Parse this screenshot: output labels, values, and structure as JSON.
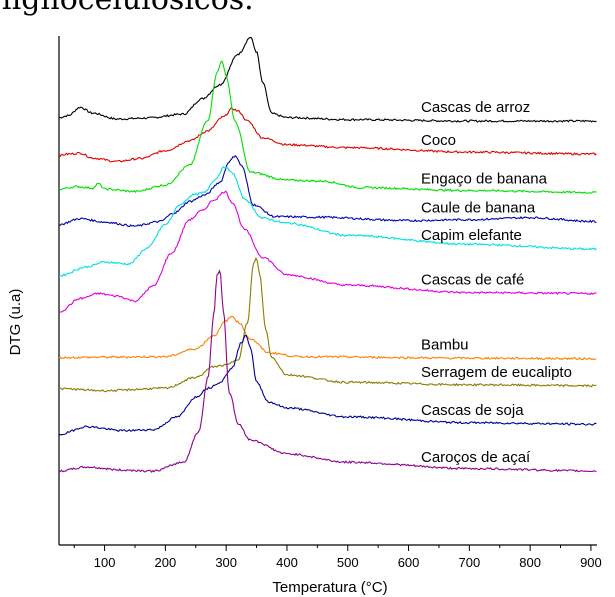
{
  "header_fragment": "lignocelulósicos.",
  "chart_data": {
    "type": "line",
    "title": "",
    "xlabel": "Temperatura (°C)",
    "ylabel": "DTG (u.a)",
    "xlim": [
      25,
      910
    ],
    "xticks": [
      100,
      200,
      300,
      400,
      500,
      600,
      700,
      800,
      900
    ],
    "ylim": [
      0,
      1
    ],
    "grid": false,
    "legend": "labels at right end of each curve",
    "series": [
      {
        "name": "Cascas de arroz",
        "color": "#000000",
        "points": [
          [
            25,
            0.867
          ],
          [
            40,
            0.871
          ],
          [
            60,
            0.888
          ],
          [
            80,
            0.876
          ],
          [
            120,
            0.864
          ],
          [
            170,
            0.866
          ],
          [
            230,
            0.874
          ],
          [
            260,
            0.905
          ],
          [
            290,
            0.934
          ],
          [
            320,
            0.996
          ],
          [
            340,
            1.03
          ],
          [
            350,
            1.0
          ],
          [
            360,
            0.938
          ],
          [
            375,
            0.875
          ],
          [
            400,
            0.867
          ],
          [
            500,
            0.863
          ],
          [
            700,
            0.86
          ],
          [
            910,
            0.86
          ]
        ]
      },
      {
        "name": "Coco",
        "color": "#e00000",
        "points": [
          [
            25,
            0.79
          ],
          [
            40,
            0.793
          ],
          [
            60,
            0.795
          ],
          [
            80,
            0.785
          ],
          [
            120,
            0.778
          ],
          [
            160,
            0.784
          ],
          [
            200,
            0.8
          ],
          [
            240,
            0.82
          ],
          [
            270,
            0.84
          ],
          [
            295,
            0.868
          ],
          [
            310,
            0.885
          ],
          [
            320,
            0.88
          ],
          [
            335,
            0.86
          ],
          [
            360,
            0.826
          ],
          [
            400,
            0.812
          ],
          [
            500,
            0.806
          ],
          [
            700,
            0.797
          ],
          [
            910,
            0.793
          ]
        ]
      },
      {
        "name": "Engaço de banana",
        "color": "#00e000",
        "points": [
          [
            25,
            0.722
          ],
          [
            55,
            0.727
          ],
          [
            80,
            0.724
          ],
          [
            90,
            0.733
          ],
          [
            100,
            0.722
          ],
          [
            150,
            0.717
          ],
          [
            200,
            0.73
          ],
          [
            240,
            0.77
          ],
          [
            270,
            0.862
          ],
          [
            285,
            0.958
          ],
          [
            293,
            0.983
          ],
          [
            300,
            0.95
          ],
          [
            315,
            0.858
          ],
          [
            340,
            0.756
          ],
          [
            400,
            0.74
          ],
          [
            460,
            0.738
          ],
          [
            520,
            0.725
          ],
          [
            700,
            0.719
          ],
          [
            910,
            0.715
          ]
        ]
      },
      {
        "name": "Caule de banana",
        "color": "#0000b0",
        "points": [
          [
            25,
            0.65
          ],
          [
            60,
            0.662
          ],
          [
            100,
            0.655
          ],
          [
            150,
            0.647
          ],
          [
            190,
            0.656
          ],
          [
            215,
            0.674
          ],
          [
            240,
            0.697
          ],
          [
            265,
            0.71
          ],
          [
            290,
            0.736
          ],
          [
            305,
            0.778
          ],
          [
            315,
            0.79
          ],
          [
            325,
            0.77
          ],
          [
            345,
            0.69
          ],
          [
            380,
            0.666
          ],
          [
            450,
            0.665
          ],
          [
            600,
            0.658
          ],
          [
            700,
            0.66
          ],
          [
            800,
            0.664
          ],
          [
            910,
            0.656
          ]
        ]
      },
      {
        "name": "Capim elefante",
        "color": "#00e0e0",
        "points": [
          [
            25,
            0.546
          ],
          [
            70,
            0.564
          ],
          [
            100,
            0.574
          ],
          [
            140,
            0.57
          ],
          [
            170,
            0.602
          ],
          [
            200,
            0.65
          ],
          [
            225,
            0.691
          ],
          [
            245,
            0.71
          ],
          [
            265,
            0.715
          ],
          [
            280,
            0.74
          ],
          [
            298,
            0.767
          ],
          [
            310,
            0.755
          ],
          [
            330,
            0.702
          ],
          [
            360,
            0.663
          ],
          [
            400,
            0.653
          ],
          [
            500,
            0.628
          ],
          [
            700,
            0.61
          ],
          [
            910,
            0.6
          ]
        ]
      },
      {
        "name": "Cascas de café",
        "color": "#e000e0",
        "points": [
          [
            25,
            0.473
          ],
          [
            60,
            0.5
          ],
          [
            90,
            0.51
          ],
          [
            120,
            0.505
          ],
          [
            150,
            0.495
          ],
          [
            180,
            0.525
          ],
          [
            210,
            0.592
          ],
          [
            240,
            0.66
          ],
          [
            260,
            0.678
          ],
          [
            280,
            0.7
          ],
          [
            298,
            0.717
          ],
          [
            310,
            0.695
          ],
          [
            330,
            0.64
          ],
          [
            360,
            0.584
          ],
          [
            400,
            0.548
          ],
          [
            500,
            0.527
          ],
          [
            700,
            0.512
          ],
          [
            910,
            0.51
          ]
        ]
      },
      {
        "name": "Bambu",
        "color": "#ff8000",
        "points": [
          [
            25,
            0.38
          ],
          [
            100,
            0.381
          ],
          [
            200,
            0.382
          ],
          [
            250,
            0.398
          ],
          [
            280,
            0.425
          ],
          [
            300,
            0.455
          ],
          [
            310,
            0.464
          ],
          [
            320,
            0.452
          ],
          [
            340,
            0.418
          ],
          [
            370,
            0.39
          ],
          [
            420,
            0.382
          ],
          [
            700,
            0.379
          ],
          [
            910,
            0.378
          ]
        ]
      },
      {
        "name": "Serragem de eucalipto",
        "color": "#8b7d00",
        "points": [
          [
            25,
            0.317
          ],
          [
            100,
            0.313
          ],
          [
            200,
            0.318
          ],
          [
            250,
            0.34
          ],
          [
            280,
            0.362
          ],
          [
            300,
            0.365
          ],
          [
            320,
            0.377
          ],
          [
            335,
            0.45
          ],
          [
            345,
            0.57
          ],
          [
            350,
            0.581
          ],
          [
            355,
            0.55
          ],
          [
            365,
            0.437
          ],
          [
            375,
            0.38
          ],
          [
            400,
            0.345
          ],
          [
            500,
            0.33
          ],
          [
            700,
            0.325
          ],
          [
            910,
            0.323
          ]
        ]
      },
      {
        "name": "Cascas de soja",
        "color": "#000090",
        "points": [
          [
            25,
            0.224
          ],
          [
            70,
            0.24
          ],
          [
            130,
            0.232
          ],
          [
            180,
            0.234
          ],
          [
            220,
            0.26
          ],
          [
            250,
            0.3
          ],
          [
            270,
            0.318
          ],
          [
            290,
            0.33
          ],
          [
            310,
            0.36
          ],
          [
            325,
            0.41
          ],
          [
            332,
            0.427
          ],
          [
            340,
            0.4
          ],
          [
            350,
            0.33
          ],
          [
            370,
            0.29
          ],
          [
            400,
            0.278
          ],
          [
            500,
            0.26
          ],
          [
            700,
            0.248
          ],
          [
            910,
            0.245
          ]
        ]
      },
      {
        "name": "Caroços de açaí",
        "color": "#900090",
        "points": [
          [
            25,
            0.15
          ],
          [
            70,
            0.158
          ],
          [
            130,
            0.152
          ],
          [
            180,
            0.15
          ],
          [
            230,
            0.168
          ],
          [
            255,
            0.23
          ],
          [
            270,
            0.34
          ],
          [
            280,
            0.47
          ],
          [
            285,
            0.55
          ],
          [
            290,
            0.555
          ],
          [
            295,
            0.48
          ],
          [
            305,
            0.31
          ],
          [
            320,
            0.245
          ],
          [
            340,
            0.213
          ],
          [
            400,
            0.185
          ],
          [
            500,
            0.168
          ],
          [
            700,
            0.155
          ],
          [
            910,
            0.15
          ]
        ]
      }
    ]
  }
}
